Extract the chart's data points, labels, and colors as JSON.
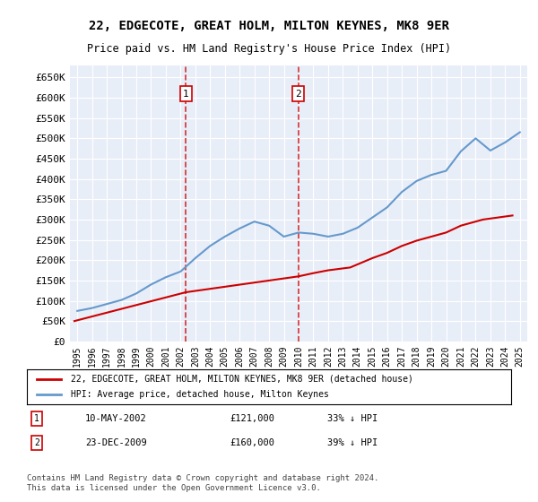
{
  "title": "22, EDGECOTE, GREAT HOLM, MILTON KEYNES, MK8 9ER",
  "subtitle": "Price paid vs. HM Land Registry's House Price Index (HPI)",
  "legend_line1": "22, EDGECOTE, GREAT HOLM, MILTON KEYNES, MK8 9ER (detached house)",
  "legend_line2": "HPI: Average price, detached house, Milton Keynes",
  "footnote": "Contains HM Land Registry data © Crown copyright and database right 2024.\nThis data is licensed under the Open Government Licence v3.0.",
  "annotation1_date": "10-MAY-2002",
  "annotation1_price": "£121,000",
  "annotation1_hpi": "33% ↓ HPI",
  "annotation2_date": "23-DEC-2009",
  "annotation2_price": "£160,000",
  "annotation2_hpi": "39% ↓ HPI",
  "vline1_x": 2002.36,
  "vline2_x": 2009.98,
  "ylim": [
    0,
    680000
  ],
  "xlim": [
    1994.5,
    2025.5
  ],
  "yticks": [
    0,
    50000,
    100000,
    150000,
    200000,
    250000,
    300000,
    350000,
    400000,
    450000,
    500000,
    550000,
    600000,
    650000
  ],
  "ytick_labels": [
    "£0",
    "£50K",
    "£100K",
    "£150K",
    "£200K",
    "£250K",
    "£300K",
    "£350K",
    "£400K",
    "£450K",
    "£500K",
    "£550K",
    "£600K",
    "£650K"
  ],
  "xticks": [
    1995,
    1996,
    1997,
    1998,
    1999,
    2000,
    2001,
    2002,
    2003,
    2004,
    2005,
    2006,
    2007,
    2008,
    2009,
    2010,
    2011,
    2012,
    2013,
    2014,
    2015,
    2016,
    2017,
    2018,
    2019,
    2020,
    2021,
    2022,
    2023,
    2024,
    2025
  ],
  "hpi_x": [
    1995,
    1996,
    1997,
    1998,
    1999,
    2000,
    2001,
    2002,
    2003,
    2004,
    2005,
    2006,
    2007,
    2008,
    2009,
    2010,
    2011,
    2012,
    2013,
    2014,
    2015,
    2016,
    2017,
    2018,
    2019,
    2020,
    2021,
    2022,
    2023,
    2024,
    2025
  ],
  "hpi_y": [
    75000,
    82000,
    92000,
    102000,
    118000,
    140000,
    158000,
    172000,
    205000,
    235000,
    258000,
    278000,
    295000,
    285000,
    258000,
    268000,
    265000,
    258000,
    265000,
    280000,
    305000,
    330000,
    368000,
    395000,
    410000,
    420000,
    468000,
    500000,
    470000,
    490000,
    515000
  ],
  "price_x": [
    1994.8,
    2002.36,
    2009.98,
    2011.0,
    2012.0,
    2013.5,
    2015.0,
    2016.0,
    2017.0,
    2018.0,
    2019.0,
    2020.0,
    2021.0,
    2022.5,
    2023.5,
    2024.5
  ],
  "price_y": [
    50000,
    121000,
    160000,
    168000,
    175000,
    182000,
    205000,
    218000,
    235000,
    248000,
    258000,
    268000,
    285000,
    300000,
    305000,
    310000
  ],
  "red_color": "#cc0000",
  "blue_color": "#6699cc",
  "bg_color": "#e8eef8",
  "plot_bg": "#ffffff"
}
